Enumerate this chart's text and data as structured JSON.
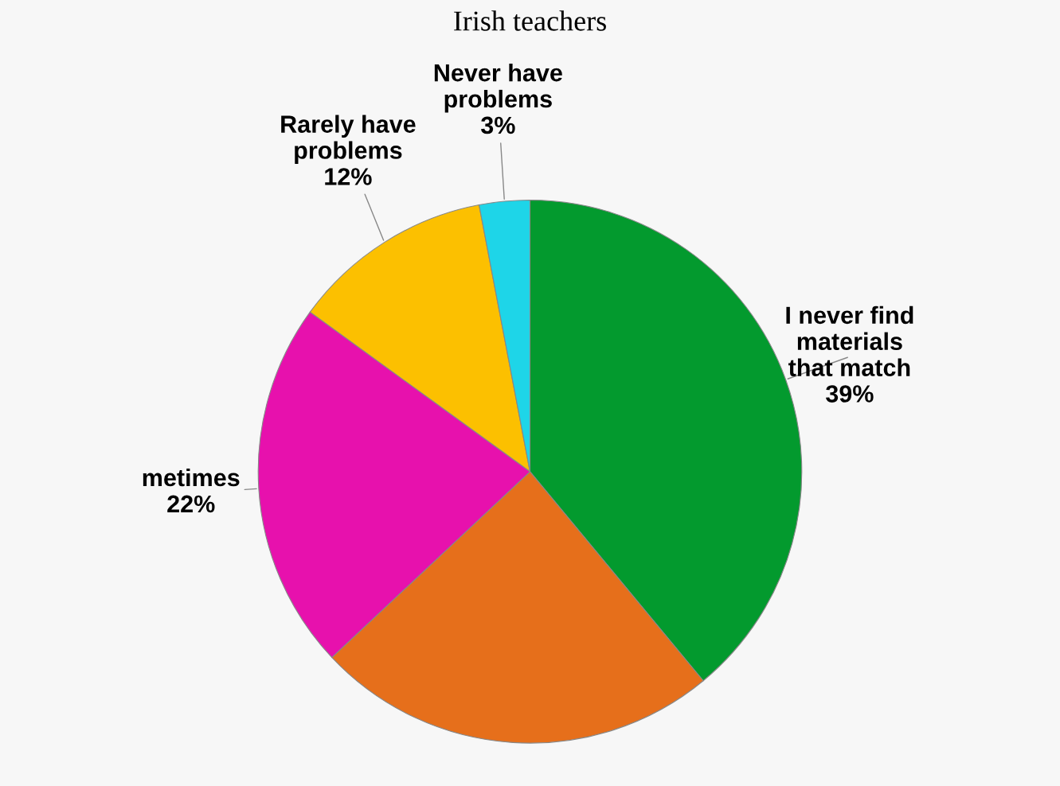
{
  "chart_data": {
    "type": "pie",
    "title": "Irish teachers",
    "categories": [
      "I never find\nmaterials\nthat match",
      null,
      "metimes",
      "Rarely have\nproblems",
      "Never have\nproblems"
    ],
    "values": [
      39,
      24,
      22,
      12,
      3
    ],
    "value_labels": [
      "39%",
      null,
      "22%",
      "12%",
      "3%"
    ],
    "colors": [
      "#039a2e",
      "#e66f1b",
      "#e711ad",
      "#fcc000",
      "#1ed5e8"
    ]
  }
}
